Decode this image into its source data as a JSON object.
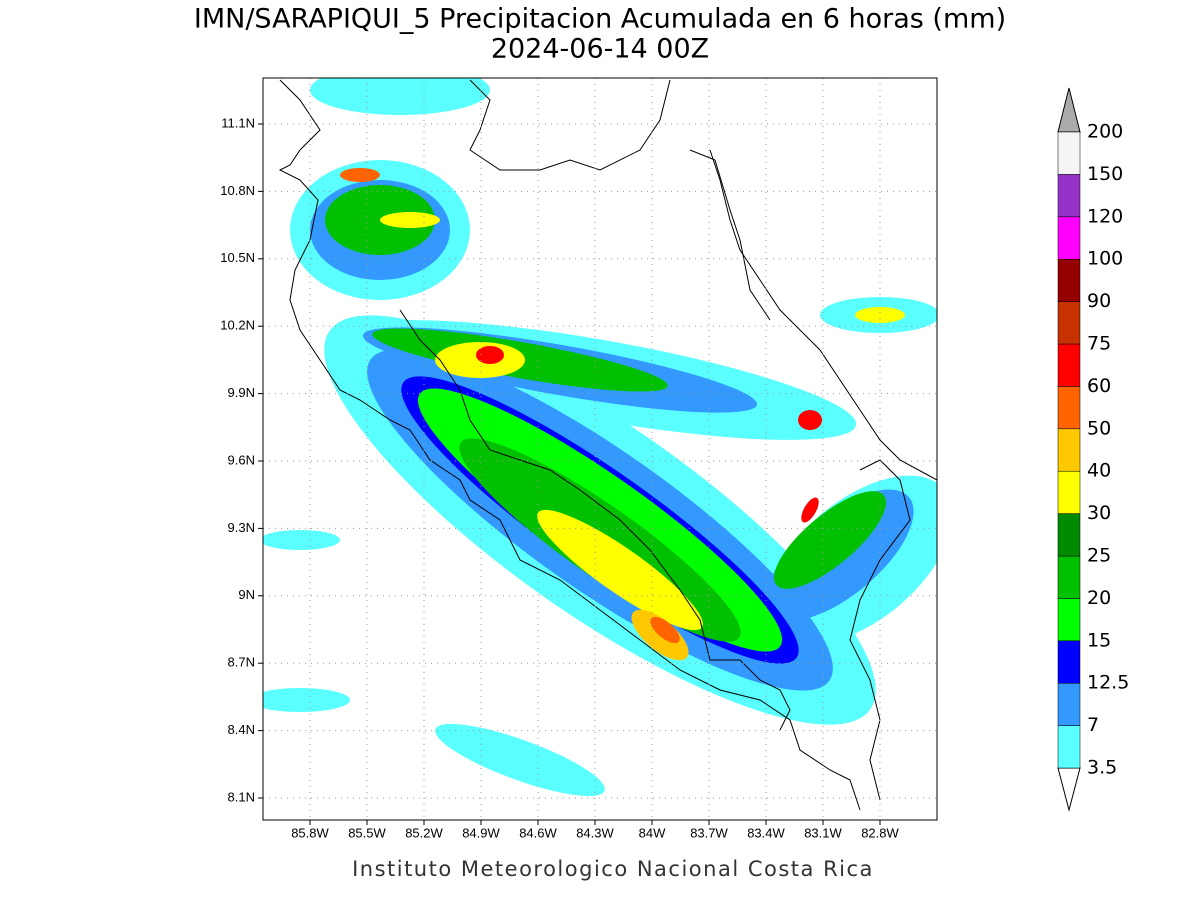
{
  "title": "IMN/SARAPIQUI_5 Precipitacion Acumulada en 6 horas (mm)",
  "subtitle": "2024-06-14 00Z",
  "map": {
    "lon_ticks": [
      "85.8W",
      "85.5W",
      "85.2W",
      "84.9W",
      "84.6W",
      "84.3W",
      "84W",
      "83.7W",
      "83.4W",
      "83.1W",
      "82.8W"
    ],
    "lat_ticks": [
      "11.1N",
      "10.8N",
      "10.5N",
      "10.2N",
      "9.9N",
      "9.6N",
      "9.3N",
      "9N",
      "8.7N",
      "8.4N",
      "8.1N"
    ]
  },
  "colorbar": {
    "labels": [
      "3.5",
      "7",
      "12.5",
      "15",
      "20",
      "25",
      "30",
      "40",
      "50",
      "60",
      "75",
      "90",
      "100",
      "120",
      "150",
      "200"
    ],
    "colors": [
      "#5affff",
      "#3399ff",
      "#0000ff",
      "#00ff00",
      "#00c000",
      "#008a00",
      "#ffff00",
      "#ffc800",
      "#ff6400",
      "#ff0000",
      "#c83200",
      "#960000",
      "#ff00ff",
      "#9632c8",
      "#f5f5f5"
    ],
    "under_color": "#ffffff",
    "over_color": "#aaaaaa"
  },
  "footer": "Instituto Meteorologico Nacional Costa Rica"
}
